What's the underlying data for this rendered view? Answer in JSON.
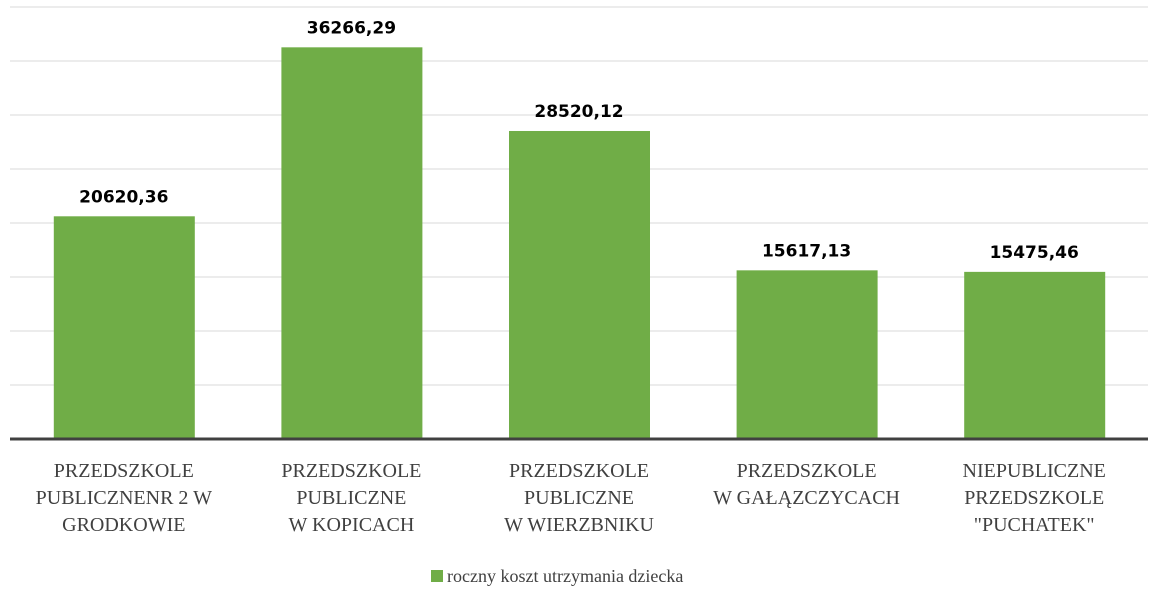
{
  "chart_data": {
    "type": "bar",
    "categories": [
      [
        "PRZEDSZKOLE",
        "PUBLICZNENR 2 W",
        "GRODKOWIE"
      ],
      [
        "PRZEDSZKOLE",
        "PUBLICZNE",
        "W KOPICACH"
      ],
      [
        "PRZEDSZKOLE",
        "PUBLICZNE",
        "W WIERZBNIKU"
      ],
      [
        "PRZEDSZKOLE",
        "W GAŁĄZCZYCACH"
      ],
      [
        "NIEPUBLICZNE",
        "PRZEDSZKOLE",
        "\"PUCHATEK\""
      ]
    ],
    "series": [
      {
        "name": "roczny koszt utrzymania dziecka",
        "color": "#70ad47",
        "values": [
          20620.36,
          36266.29,
          28520.12,
          15617.13,
          15475.46
        ],
        "value_labels": [
          "20620,36",
          "36266,29",
          "28520,12",
          "15617,13",
          "15475,46"
        ]
      }
    ],
    "ylim": [
      0,
      40000
    ],
    "yticks": [
      0,
      5000,
      10000,
      15000,
      20000,
      25000,
      30000,
      35000,
      40000
    ],
    "grid": true,
    "legend": "bottom"
  }
}
